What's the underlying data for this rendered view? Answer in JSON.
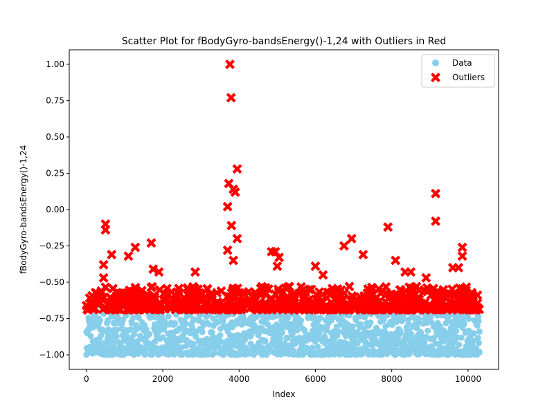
{
  "chart_data": {
    "type": "scatter",
    "title": "Scatter Plot for fBodyGyro-bandsEnergy()-1,24 with Outliers in Red",
    "xlabel": "Index",
    "ylabel": "fBodyGyro-bandsEnergy()-1,24",
    "xlim": [
      -450,
      10800
    ],
    "ylim": [
      -1.1,
      1.1
    ],
    "xticks": [
      0,
      2000,
      4000,
      6000,
      8000,
      10000
    ],
    "xtick_labels": [
      "0",
      "2000",
      "4000",
      "6000",
      "8000",
      "10000"
    ],
    "yticks": [
      -1.0,
      -0.75,
      -0.5,
      -0.25,
      0.0,
      0.25,
      0.5,
      0.75,
      1.0
    ],
    "ytick_labels": [
      "−1.00",
      "−0.75",
      "−0.50",
      "−0.25",
      "0.00",
      "0.25",
      "0.50",
      "0.75",
      "1.00"
    ],
    "grid": false,
    "legend_position": "top-right",
    "series": [
      {
        "name": "Data",
        "marker": "circle",
        "color": "#87CEEB",
        "x_range": [
          0,
          10299
        ],
        "y_range": [
          -1.0,
          -0.69
        ],
        "points": [
          [
            0,
            -1.0
          ],
          [
            200,
            -0.76
          ],
          [
            1000,
            -0.98
          ],
          [
            2000,
            -0.88
          ],
          [
            3000,
            -0.72
          ],
          [
            4000,
            -0.9
          ],
          [
            5000,
            -0.95
          ],
          [
            6000,
            -0.78
          ],
          [
            7000,
            -0.85
          ],
          [
            8000,
            -0.92
          ],
          [
            9000,
            -0.74
          ],
          [
            10000,
            -0.96
          ],
          [
            10299,
            -0.84
          ]
        ]
      },
      {
        "name": "Outliers",
        "marker": "x",
        "color": "#FF0000",
        "points": [
          [
            3760,
            1.0
          ],
          [
            3790,
            0.77
          ],
          [
            3950,
            0.28
          ],
          [
            3730,
            0.18
          ],
          [
            3850,
            0.14
          ],
          [
            3900,
            0.12
          ],
          [
            3700,
            0.02
          ],
          [
            3800,
            -0.11
          ],
          [
            3950,
            -0.2
          ],
          [
            3700,
            -0.28
          ],
          [
            3850,
            -0.35
          ],
          [
            9150,
            0.11
          ],
          [
            9150,
            -0.08
          ],
          [
            500,
            -0.1
          ],
          [
            500,
            -0.14
          ],
          [
            1700,
            -0.23
          ],
          [
            660,
            -0.31
          ],
          [
            1280,
            -0.26
          ],
          [
            1100,
            -0.32
          ],
          [
            6950,
            -0.2
          ],
          [
            6750,
            -0.25
          ],
          [
            7250,
            -0.31
          ],
          [
            4850,
            -0.29
          ],
          [
            4950,
            -0.29
          ],
          [
            5000,
            -0.39
          ],
          [
            5050,
            -0.33
          ],
          [
            7900,
            -0.12
          ],
          [
            8100,
            -0.35
          ],
          [
            9850,
            -0.26
          ],
          [
            9850,
            -0.32
          ],
          [
            9600,
            -0.4
          ],
          [
            9750,
            -0.4
          ],
          [
            6000,
            -0.39
          ],
          [
            6200,
            -0.45
          ],
          [
            2850,
            -0.43
          ],
          [
            1750,
            -0.41
          ],
          [
            1900,
            -0.43
          ],
          [
            450,
            -0.38
          ],
          [
            450,
            -0.47
          ],
          [
            8350,
            -0.43
          ],
          [
            8500,
            -0.43
          ],
          [
            8650,
            -0.53
          ],
          [
            8900,
            -0.47
          ]
        ]
      }
    ]
  }
}
